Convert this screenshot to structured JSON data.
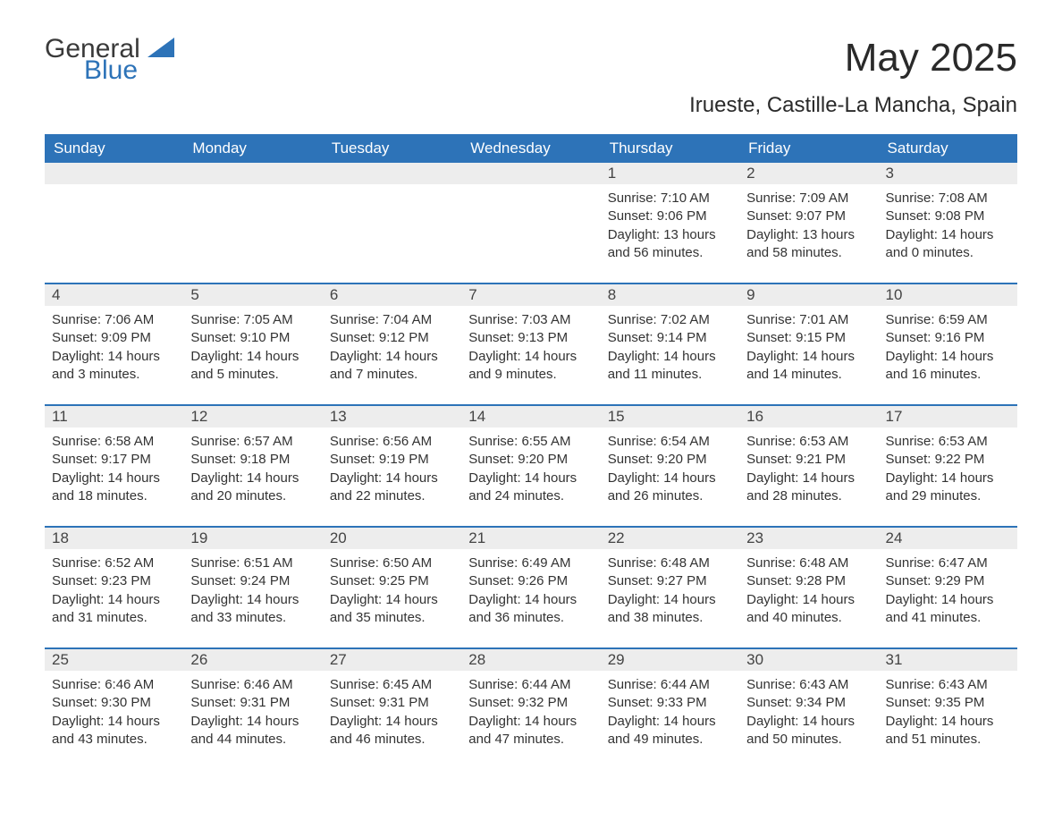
{
  "logo": {
    "general": "General",
    "blue": "Blue"
  },
  "title": "May 2025",
  "subtitle": "Irueste, Castille-La Mancha, Spain",
  "colors": {
    "header_bg": "#2d73b8",
    "header_text": "#ffffff",
    "daynum_bg": "#ededed",
    "body_text": "#333333",
    "week_border": "#2d73b8",
    "page_bg": "#ffffff"
  },
  "weekdays": [
    "Sunday",
    "Monday",
    "Tuesday",
    "Wednesday",
    "Thursday",
    "Friday",
    "Saturday"
  ],
  "weeks": [
    [
      {
        "n": "",
        "sunrise": "",
        "sunset": "",
        "daylight": ""
      },
      {
        "n": "",
        "sunrise": "",
        "sunset": "",
        "daylight": ""
      },
      {
        "n": "",
        "sunrise": "",
        "sunset": "",
        "daylight": ""
      },
      {
        "n": "",
        "sunrise": "",
        "sunset": "",
        "daylight": ""
      },
      {
        "n": "1",
        "sunrise": "Sunrise: 7:10 AM",
        "sunset": "Sunset: 9:06 PM",
        "daylight": "Daylight: 13 hours and 56 minutes."
      },
      {
        "n": "2",
        "sunrise": "Sunrise: 7:09 AM",
        "sunset": "Sunset: 9:07 PM",
        "daylight": "Daylight: 13 hours and 58 minutes."
      },
      {
        "n": "3",
        "sunrise": "Sunrise: 7:08 AM",
        "sunset": "Sunset: 9:08 PM",
        "daylight": "Daylight: 14 hours and 0 minutes."
      }
    ],
    [
      {
        "n": "4",
        "sunrise": "Sunrise: 7:06 AM",
        "sunset": "Sunset: 9:09 PM",
        "daylight": "Daylight: 14 hours and 3 minutes."
      },
      {
        "n": "5",
        "sunrise": "Sunrise: 7:05 AM",
        "sunset": "Sunset: 9:10 PM",
        "daylight": "Daylight: 14 hours and 5 minutes."
      },
      {
        "n": "6",
        "sunrise": "Sunrise: 7:04 AM",
        "sunset": "Sunset: 9:12 PM",
        "daylight": "Daylight: 14 hours and 7 minutes."
      },
      {
        "n": "7",
        "sunrise": "Sunrise: 7:03 AM",
        "sunset": "Sunset: 9:13 PM",
        "daylight": "Daylight: 14 hours and 9 minutes."
      },
      {
        "n": "8",
        "sunrise": "Sunrise: 7:02 AM",
        "sunset": "Sunset: 9:14 PM",
        "daylight": "Daylight: 14 hours and 11 minutes."
      },
      {
        "n": "9",
        "sunrise": "Sunrise: 7:01 AM",
        "sunset": "Sunset: 9:15 PM",
        "daylight": "Daylight: 14 hours and 14 minutes."
      },
      {
        "n": "10",
        "sunrise": "Sunrise: 6:59 AM",
        "sunset": "Sunset: 9:16 PM",
        "daylight": "Daylight: 14 hours and 16 minutes."
      }
    ],
    [
      {
        "n": "11",
        "sunrise": "Sunrise: 6:58 AM",
        "sunset": "Sunset: 9:17 PM",
        "daylight": "Daylight: 14 hours and 18 minutes."
      },
      {
        "n": "12",
        "sunrise": "Sunrise: 6:57 AM",
        "sunset": "Sunset: 9:18 PM",
        "daylight": "Daylight: 14 hours and 20 minutes."
      },
      {
        "n": "13",
        "sunrise": "Sunrise: 6:56 AM",
        "sunset": "Sunset: 9:19 PM",
        "daylight": "Daylight: 14 hours and 22 minutes."
      },
      {
        "n": "14",
        "sunrise": "Sunrise: 6:55 AM",
        "sunset": "Sunset: 9:20 PM",
        "daylight": "Daylight: 14 hours and 24 minutes."
      },
      {
        "n": "15",
        "sunrise": "Sunrise: 6:54 AM",
        "sunset": "Sunset: 9:20 PM",
        "daylight": "Daylight: 14 hours and 26 minutes."
      },
      {
        "n": "16",
        "sunrise": "Sunrise: 6:53 AM",
        "sunset": "Sunset: 9:21 PM",
        "daylight": "Daylight: 14 hours and 28 minutes."
      },
      {
        "n": "17",
        "sunrise": "Sunrise: 6:53 AM",
        "sunset": "Sunset: 9:22 PM",
        "daylight": "Daylight: 14 hours and 29 minutes."
      }
    ],
    [
      {
        "n": "18",
        "sunrise": "Sunrise: 6:52 AM",
        "sunset": "Sunset: 9:23 PM",
        "daylight": "Daylight: 14 hours and 31 minutes."
      },
      {
        "n": "19",
        "sunrise": "Sunrise: 6:51 AM",
        "sunset": "Sunset: 9:24 PM",
        "daylight": "Daylight: 14 hours and 33 minutes."
      },
      {
        "n": "20",
        "sunrise": "Sunrise: 6:50 AM",
        "sunset": "Sunset: 9:25 PM",
        "daylight": "Daylight: 14 hours and 35 minutes."
      },
      {
        "n": "21",
        "sunrise": "Sunrise: 6:49 AM",
        "sunset": "Sunset: 9:26 PM",
        "daylight": "Daylight: 14 hours and 36 minutes."
      },
      {
        "n": "22",
        "sunrise": "Sunrise: 6:48 AM",
        "sunset": "Sunset: 9:27 PM",
        "daylight": "Daylight: 14 hours and 38 minutes."
      },
      {
        "n": "23",
        "sunrise": "Sunrise: 6:48 AM",
        "sunset": "Sunset: 9:28 PM",
        "daylight": "Daylight: 14 hours and 40 minutes."
      },
      {
        "n": "24",
        "sunrise": "Sunrise: 6:47 AM",
        "sunset": "Sunset: 9:29 PM",
        "daylight": "Daylight: 14 hours and 41 minutes."
      }
    ],
    [
      {
        "n": "25",
        "sunrise": "Sunrise: 6:46 AM",
        "sunset": "Sunset: 9:30 PM",
        "daylight": "Daylight: 14 hours and 43 minutes."
      },
      {
        "n": "26",
        "sunrise": "Sunrise: 6:46 AM",
        "sunset": "Sunset: 9:31 PM",
        "daylight": "Daylight: 14 hours and 44 minutes."
      },
      {
        "n": "27",
        "sunrise": "Sunrise: 6:45 AM",
        "sunset": "Sunset: 9:31 PM",
        "daylight": "Daylight: 14 hours and 46 minutes."
      },
      {
        "n": "28",
        "sunrise": "Sunrise: 6:44 AM",
        "sunset": "Sunset: 9:32 PM",
        "daylight": "Daylight: 14 hours and 47 minutes."
      },
      {
        "n": "29",
        "sunrise": "Sunrise: 6:44 AM",
        "sunset": "Sunset: 9:33 PM",
        "daylight": "Daylight: 14 hours and 49 minutes."
      },
      {
        "n": "30",
        "sunrise": "Sunrise: 6:43 AM",
        "sunset": "Sunset: 9:34 PM",
        "daylight": "Daylight: 14 hours and 50 minutes."
      },
      {
        "n": "31",
        "sunrise": "Sunrise: 6:43 AM",
        "sunset": "Sunset: 9:35 PM",
        "daylight": "Daylight: 14 hours and 51 minutes."
      }
    ]
  ]
}
